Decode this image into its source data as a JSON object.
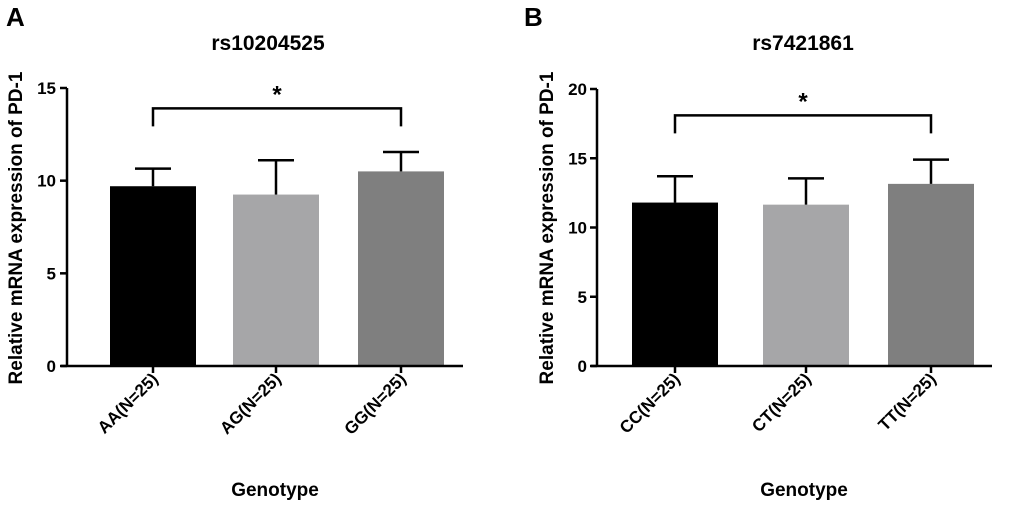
{
  "chart_data": [
    {
      "type": "bar",
      "panel": "A",
      "title": "rs10204525",
      "xlabel": "Genotype",
      "ylabel": "Relative mRNA expression of PD-1",
      "ylim": [
        0,
        15
      ],
      "yticks": [
        "0",
        "5",
        "10",
        "15"
      ],
      "categories": [
        "AA(N=25)",
        "AG(N=25)",
        "GG(N=25)"
      ],
      "values": [
        9.7,
        9.25,
        10.5
      ],
      "error_upper": [
        10.65,
        11.1,
        11.55
      ],
      "colors": [
        "#000000",
        "#a6a6a8",
        "#7f7f7f"
      ],
      "significance": {
        "from": 0,
        "to": 2,
        "level": 13.9,
        "label": "*"
      }
    },
    {
      "type": "bar",
      "panel": "B",
      "title": "rs7421861",
      "xlabel": "Genotype",
      "ylabel": "Relative mRNA expression of PD-1",
      "ylim": [
        0,
        20
      ],
      "yticks": [
        "0",
        "5",
        "10",
        "15",
        "20"
      ],
      "categories": [
        "CC(N=25)",
        "CT(N=25)",
        "TT(N=25)"
      ],
      "values": [
        11.8,
        11.65,
        13.15
      ],
      "error_upper": [
        13.7,
        13.55,
        14.9
      ],
      "colors": [
        "#000000",
        "#a6a6a8",
        "#7f7f7f"
      ],
      "significance": {
        "from": 0,
        "to": 2,
        "level": 18.1,
        "label": "*"
      }
    }
  ]
}
